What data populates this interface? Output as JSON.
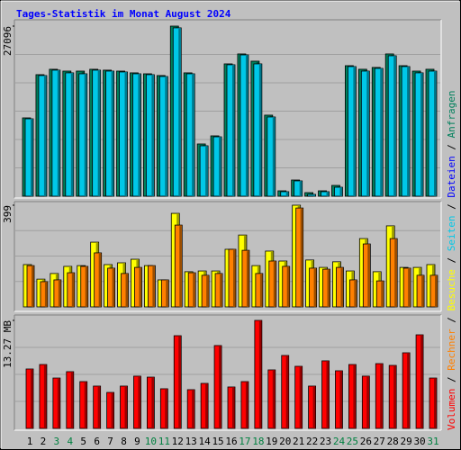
{
  "chart_data": [
    {
      "type": "bar",
      "title": "Tages-Statistik im Monat August 2024",
      "ylim": [
        0,
        27096
      ],
      "yticks": [
        27096
      ],
      "grid": true,
      "series": [
        {
          "name": "Anfragen",
          "color": "#00805c",
          "values": [
            12476,
            19360,
            20220,
            19930,
            19930,
            20220,
            20080,
            19930,
            19650,
            19500,
            19220,
            27096,
            19650,
            8320,
            9610,
            21080,
            22660,
            21510,
            12910,
            860,
            2580,
            570,
            860,
            1720,
            20790,
            20220,
            20510,
            22660,
            20790,
            19930,
            20220
          ]
        },
        {
          "name": "Dateien",
          "color": "#0000ff",
          "values": [
            null,
            null,
            null,
            null,
            null,
            null,
            null,
            null,
            null,
            null,
            null,
            null,
            null,
            null,
            null,
            null,
            null,
            null,
            null,
            null,
            null,
            null,
            null,
            null,
            null,
            null,
            null,
            null,
            null,
            null,
            null
          ]
        },
        {
          "name": "Seiten",
          "color": "#00c8e8",
          "values": [
            12330,
            19220,
            20080,
            19650,
            19500,
            20080,
            19930,
            19790,
            19500,
            19360,
            19070,
            26820,
            19500,
            8030,
            9460,
            20940,
            22510,
            21080,
            12620,
            720,
            2440,
            290,
            720,
            1430,
            20650,
            19930,
            20360,
            22370,
            20650,
            19650,
            19930
          ]
        }
      ]
    },
    {
      "type": "bar",
      "ylim": [
        0,
        399
      ],
      "yticks": [
        399
      ],
      "grid": true,
      "series": [
        {
          "name": "Besuche",
          "color": "#ffff00",
          "values": [
            166,
            109,
            131,
            159,
            162,
            254,
            166,
            173,
            187,
            162,
            106,
            367,
            138,
            141,
            141,
            226,
            282,
            162,
            219,
            180,
            399,
            184,
            155,
            177,
            141,
            268,
            138,
            318,
            155,
            155,
            166
          ]
        },
        {
          "name": "Rechner",
          "color": "#ff8000",
          "values": [
            162,
            99,
            106,
            134,
            159,
            212,
            152,
            131,
            155,
            162,
            106,
            321,
            134,
            124,
            131,
            226,
            222,
            131,
            180,
            159,
            388,
            152,
            148,
            155,
            106,
            247,
            102,
            268,
            152,
            124,
            124
          ]
        }
      ]
    },
    {
      "type": "bar",
      "ylim": [
        0,
        13.27
      ],
      "yticks": [
        {
          "value": 13.27,
          "label": "13.27 MB"
        }
      ],
      "grid": true,
      "categories": [
        "1",
        "2",
        "3",
        "4",
        "5",
        "6",
        "7",
        "8",
        "9",
        "10",
        "11",
        "12",
        "13",
        "14",
        "15",
        "16",
        "17",
        "18",
        "19",
        "20",
        "21",
        "22",
        "23",
        "24",
        "25",
        "26",
        "27",
        "28",
        "29",
        "30",
        "31"
      ],
      "category_colors": [
        "#000000",
        "#000000",
        "#008040",
        "#008040",
        "#000000",
        "#000000",
        "#000000",
        "#000000",
        "#000000",
        "#008040",
        "#008040",
        "#000000",
        "#000000",
        "#000000",
        "#000000",
        "#000000",
        "#008040",
        "#008040",
        "#000000",
        "#000000",
        "#000000",
        "#000000",
        "#000000",
        "#008040",
        "#008040",
        "#000000",
        "#000000",
        "#000000",
        "#000000",
        "#000000",
        "#008040"
      ],
      "legend_separator": " / ",
      "series": [
        {
          "name": "Volumen",
          "color": "#ff0000",
          "values": [
            7.3,
            7.85,
            6.19,
            6.97,
            5.75,
            5.2,
            4.42,
            5.2,
            6.42,
            6.3,
            4.87,
            11.39,
            4.76,
            5.53,
            10.18,
            5.09,
            5.75,
            13.27,
            7.19,
            8.96,
            7.63,
            5.2,
            8.3,
            7.08,
            7.85,
            6.42,
            7.96,
            7.74,
            9.29,
            11.5,
            6.19
          ]
        }
      ]
    }
  ]
}
